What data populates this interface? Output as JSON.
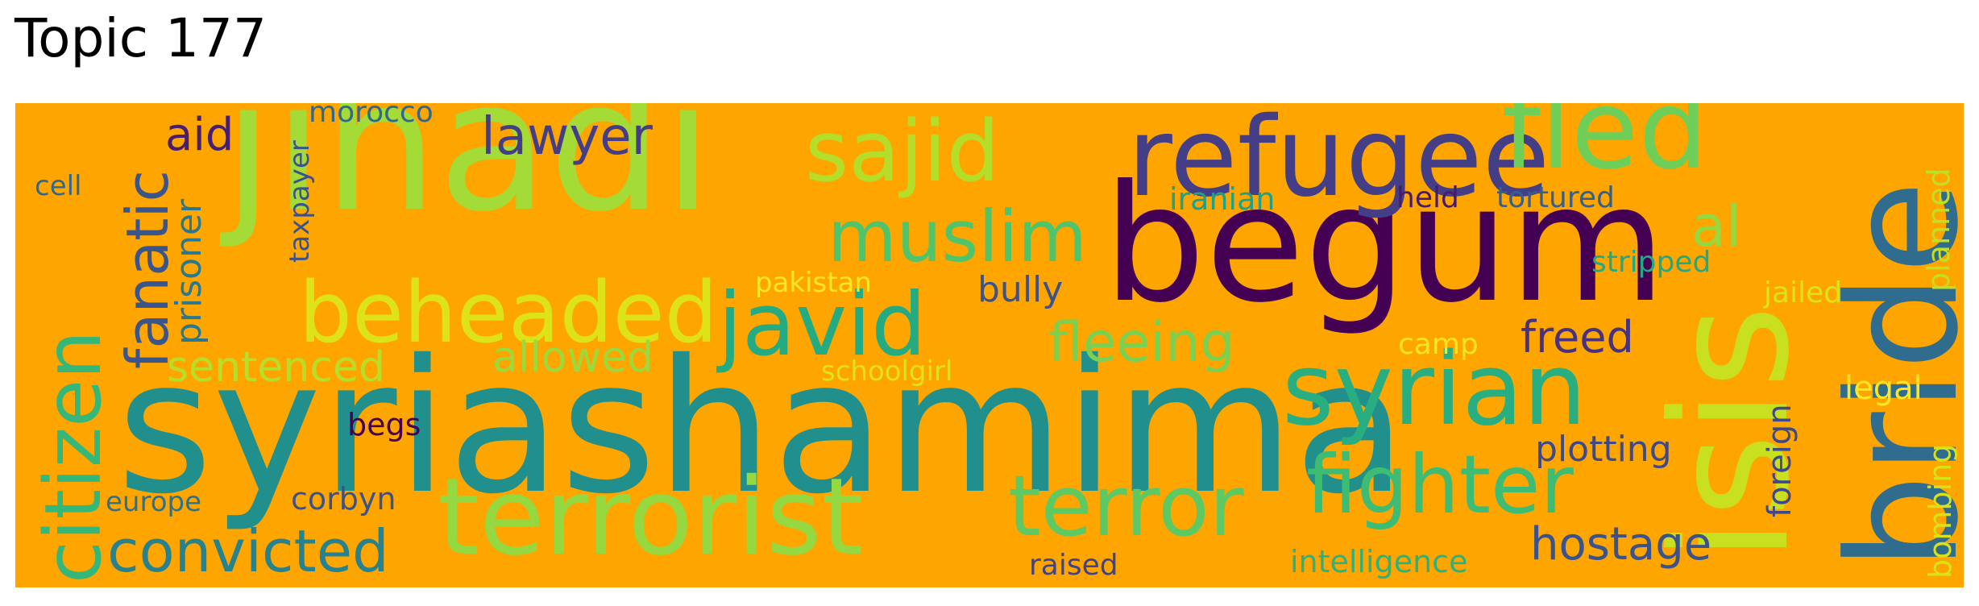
{
  "title": "Topic 177",
  "cloud": {
    "background": "#FFA500",
    "words": [
      {
        "text": "syriashamima",
        "color": "#21908d"
      },
      {
        "text": "begum",
        "color": "#440154"
      },
      {
        "text": "jihadi",
        "color": "#a5db36"
      },
      {
        "text": "isis",
        "color": "#c8e020"
      },
      {
        "text": "bride",
        "color": "#2f6c8e"
      },
      {
        "text": "refugee",
        "color": "#433e85"
      },
      {
        "text": "fled",
        "color": "#6ece58"
      },
      {
        "text": "terrorist",
        "color": "#95d840"
      },
      {
        "text": "syrian",
        "color": "#28ae80"
      },
      {
        "text": "terror",
        "color": "#5ec962"
      },
      {
        "text": "fighter",
        "color": "#3fbc73"
      },
      {
        "text": "sajid",
        "color": "#b5de2b"
      },
      {
        "text": "beheaded",
        "color": "#dde318"
      },
      {
        "text": "javid",
        "color": "#25ab82"
      },
      {
        "text": "muslim",
        "color": "#50c46a"
      },
      {
        "text": "citizen",
        "color": "#35b779"
      },
      {
        "text": "convicted",
        "color": "#26828e"
      },
      {
        "text": "fanatic",
        "color": "#3a548c"
      },
      {
        "text": "fleeing",
        "color": "#7ad151"
      },
      {
        "text": "lawyer",
        "color": "#433e85"
      },
      {
        "text": "hostage",
        "color": "#3b528b"
      },
      {
        "text": "aid",
        "color": "#481f70"
      },
      {
        "text": "freed",
        "color": "#46327e"
      },
      {
        "text": "plotting",
        "color": "#3e4989"
      },
      {
        "text": "prisoner",
        "color": "#2a788e"
      },
      {
        "text": "sentenced",
        "color": "#b8de29"
      },
      {
        "text": "allowed",
        "color": "#9bd93c"
      },
      {
        "text": "al",
        "color": "#95d840"
      },
      {
        "text": "bully",
        "color": "#3b528b"
      },
      {
        "text": "legal",
        "color": "#fde725"
      },
      {
        "text": "foreign",
        "color": "#3e4989"
      },
      {
        "text": "bombing",
        "color": "#d8e219"
      },
      {
        "text": "planned",
        "color": "#c2df23"
      },
      {
        "text": "taxpayer",
        "color": "#3b528b"
      },
      {
        "text": "morocco",
        "color": "#31688e"
      },
      {
        "text": "cell",
        "color": "#31688e"
      },
      {
        "text": "iranian",
        "color": "#1fa187"
      },
      {
        "text": "held",
        "color": "#481a6c"
      },
      {
        "text": "tortured",
        "color": "#355f8d"
      },
      {
        "text": "stripped",
        "color": "#22a884"
      },
      {
        "text": "jailed",
        "color": "#dde318"
      },
      {
        "text": "pakistan",
        "color": "#fde725"
      },
      {
        "text": "camp",
        "color": "#f8e621"
      },
      {
        "text": "schoolgirl",
        "color": "#dfe318"
      },
      {
        "text": "begs",
        "color": "#440154"
      },
      {
        "text": "europe",
        "color": "#2c728e"
      },
      {
        "text": "corbyn",
        "color": "#3b528b"
      },
      {
        "text": "raised",
        "color": "#404387"
      },
      {
        "text": "intelligence",
        "color": "#2db27d"
      }
    ]
  }
}
